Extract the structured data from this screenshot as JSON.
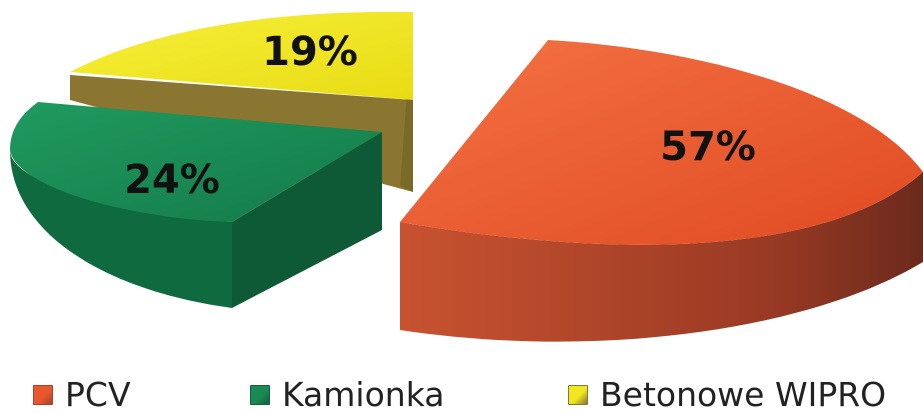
{
  "chart_data": {
    "type": "pie",
    "style": "3d-exploded",
    "categories": [
      "PCV",
      "Kamionka",
      "Betonowe WIPRO"
    ],
    "values": [
      57,
      24,
      19
    ],
    "labels": [
      "57%",
      "24%",
      "19%"
    ],
    "colors": [
      "#e8582e",
      "#1a8a55",
      "#f0e81e"
    ],
    "side_colors": [
      "#a8422a",
      "#11613b",
      "#8a7630"
    ],
    "title": "",
    "legend_position": "bottom"
  }
}
